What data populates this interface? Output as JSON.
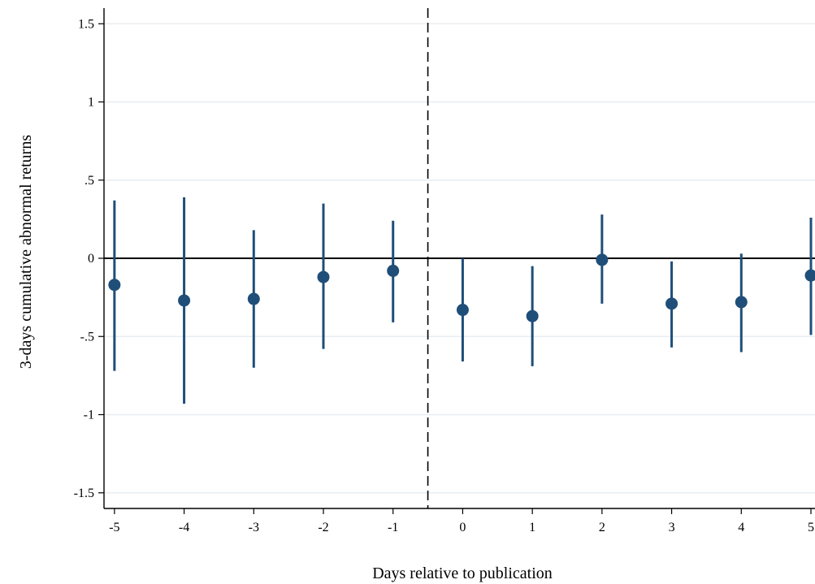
{
  "chart_data": {
    "type": "scatter",
    "title": "",
    "xlabel": "Days relative to publication",
    "ylabel": "3-days cumulative abnormal returns",
    "x_ticks": [
      "-5",
      "-4",
      "-3",
      "-2",
      "-1",
      "0",
      "1",
      "2",
      "3",
      "4",
      "5"
    ],
    "y_ticks": [
      "1.5",
      "1",
      ".5",
      "0",
      "-.5",
      "-1",
      "-1.5"
    ],
    "y_tick_values": [
      1.5,
      1,
      0.5,
      0,
      -0.5,
      -1,
      -1.5
    ],
    "xlim": [
      -5.15,
      5.0
    ],
    "ylim": [
      -1.6,
      1.6
    ],
    "grid": true,
    "reference_lines": {
      "horizontal_y": 0,
      "vertical_dashed_x": -0.5
    },
    "colors": {
      "marker": "#1f4e79",
      "grid": "#e8eef2",
      "axis": "#000000"
    },
    "series": [
      {
        "points": [
          {
            "x": -5,
            "y": -0.17,
            "ci_low": -0.72,
            "ci_high": 0.37
          },
          {
            "x": -4,
            "y": -0.27,
            "ci_low": -0.93,
            "ci_high": 0.39
          },
          {
            "x": -3,
            "y": -0.26,
            "ci_low": -0.7,
            "ci_high": 0.18
          },
          {
            "x": -2,
            "y": -0.12,
            "ci_low": -0.58,
            "ci_high": 0.35
          },
          {
            "x": -1,
            "y": -0.08,
            "ci_low": -0.41,
            "ci_high": 0.24
          },
          {
            "x": 0,
            "y": -0.33,
            "ci_low": -0.66,
            "ci_high": 0.0
          },
          {
            "x": 1,
            "y": -0.37,
            "ci_low": -0.69,
            "ci_high": -0.05
          },
          {
            "x": 2,
            "y": -0.01,
            "ci_low": -0.29,
            "ci_high": 0.28
          },
          {
            "x": 3,
            "y": -0.29,
            "ci_low": -0.57,
            "ci_high": -0.02
          },
          {
            "x": 4,
            "y": -0.28,
            "ci_low": -0.6,
            "ci_high": 0.03
          },
          {
            "x": 5,
            "y": -0.11,
            "ci_low": -0.49,
            "ci_high": 0.26
          }
        ]
      }
    ]
  }
}
